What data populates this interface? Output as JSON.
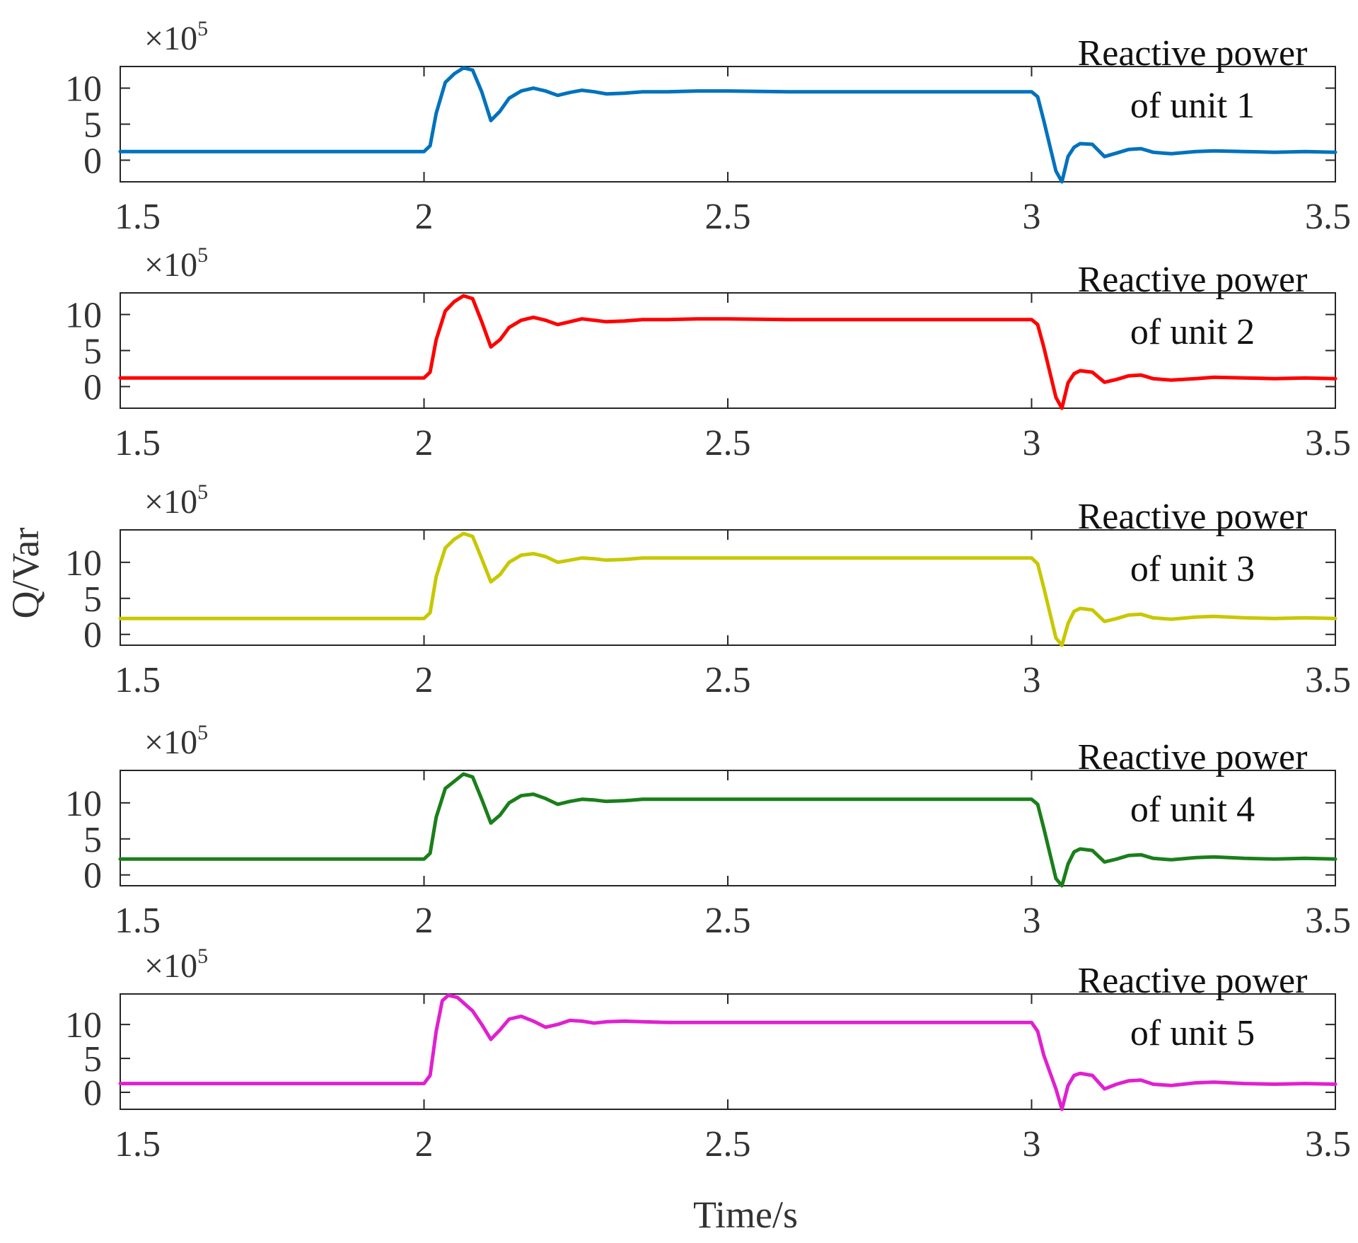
{
  "figure": {
    "ylabel": "Q/Var",
    "xlabel": "Time/s"
  },
  "chart_data": [
    {
      "type": "line",
      "title": "",
      "legend": "Reactive power of unit 1",
      "legend_lines": [
        "Reactive power",
        "of unit 1"
      ],
      "legend_position": "top-right",
      "color": "#0072BD",
      "xlim": [
        1.5,
        3.5
      ],
      "ylim": [
        -3,
        13
      ],
      "xticks": [
        1.5,
        2,
        2.5,
        3,
        3.5
      ],
      "xtick_labels": [
        "1.5",
        "2",
        "2.5",
        "3",
        "3.5"
      ],
      "yticks": [
        0,
        5,
        10
      ],
      "ytick_labels": [
        "0",
        "5",
        "10"
      ],
      "exponent_base": "×10",
      "exponent_power": "5",
      "x": [
        1.5,
        2.0,
        2.01,
        2.02,
        2.035,
        2.05,
        2.065,
        2.08,
        2.095,
        2.11,
        2.125,
        2.14,
        2.16,
        2.18,
        2.2,
        2.22,
        2.24,
        2.26,
        2.28,
        2.3,
        2.33,
        2.36,
        2.4,
        2.45,
        2.5,
        2.6,
        2.7,
        2.8,
        2.9,
        3.0,
        3.01,
        3.02,
        3.03,
        3.04,
        3.05,
        3.06,
        3.07,
        3.08,
        3.1,
        3.12,
        3.14,
        3.16,
        3.18,
        3.2,
        3.23,
        3.27,
        3.3,
        3.35,
        3.4,
        3.45,
        3.5
      ],
      "y": [
        1.2,
        1.2,
        2.0,
        6.5,
        10.8,
        12.0,
        12.8,
        12.5,
        9.5,
        5.5,
        6.8,
        8.6,
        9.6,
        10.0,
        9.6,
        9.0,
        9.4,
        9.7,
        9.5,
        9.2,
        9.3,
        9.5,
        9.5,
        9.6,
        9.6,
        9.5,
        9.5,
        9.5,
        9.5,
        9.5,
        8.8,
        5.5,
        2.0,
        -1.5,
        -3.0,
        0.5,
        1.8,
        2.3,
        2.2,
        0.5,
        1.0,
        1.5,
        1.6,
        1.1,
        0.9,
        1.2,
        1.3,
        1.2,
        1.1,
        1.2,
        1.1
      ]
    },
    {
      "type": "line",
      "title": "",
      "legend": "Reactive power of unit 2",
      "legend_lines": [
        "Reactive power",
        "of unit 2"
      ],
      "legend_position": "top-right",
      "color": "#FF0000",
      "xlim": [
        1.5,
        3.5
      ],
      "ylim": [
        -3,
        13
      ],
      "xticks": [
        1.5,
        2,
        2.5,
        3,
        3.5
      ],
      "xtick_labels": [
        "1.5",
        "2",
        "2.5",
        "3",
        "3.5"
      ],
      "yticks": [
        0,
        5,
        10
      ],
      "ytick_labels": [
        "0",
        "5",
        "10"
      ],
      "exponent_base": "×10",
      "exponent_power": "5",
      "x": [
        1.5,
        2.0,
        2.01,
        2.02,
        2.035,
        2.05,
        2.065,
        2.08,
        2.095,
        2.11,
        2.125,
        2.14,
        2.16,
        2.18,
        2.2,
        2.22,
        2.24,
        2.26,
        2.28,
        2.3,
        2.33,
        2.36,
        2.4,
        2.45,
        2.5,
        2.6,
        2.7,
        2.8,
        2.9,
        3.0,
        3.01,
        3.02,
        3.03,
        3.04,
        3.05,
        3.06,
        3.07,
        3.08,
        3.1,
        3.12,
        3.14,
        3.16,
        3.18,
        3.2,
        3.23,
        3.27,
        3.3,
        3.35,
        3.4,
        3.45,
        3.5
      ],
      "y": [
        1.2,
        1.2,
        2.0,
        6.5,
        10.5,
        11.8,
        12.6,
        12.2,
        9.0,
        5.5,
        6.5,
        8.2,
        9.2,
        9.6,
        9.2,
        8.6,
        9.0,
        9.4,
        9.2,
        9.0,
        9.1,
        9.3,
        9.3,
        9.4,
        9.4,
        9.3,
        9.3,
        9.3,
        9.3,
        9.3,
        8.6,
        5.5,
        2.0,
        -1.5,
        -3.0,
        0.5,
        1.8,
        2.2,
        2.0,
        0.6,
        1.0,
        1.5,
        1.6,
        1.1,
        0.9,
        1.1,
        1.3,
        1.2,
        1.1,
        1.2,
        1.1
      ]
    },
    {
      "type": "line",
      "title": "",
      "legend": "Reactive power of unit 3",
      "legend_lines": [
        "Reactive power",
        "of unit 3"
      ],
      "legend_position": "top-right",
      "color": "#C8C800",
      "xlim": [
        1.5,
        3.5
      ],
      "ylim": [
        -1.5,
        14.5
      ],
      "xticks": [
        1.5,
        2,
        2.5,
        3,
        3.5
      ],
      "xtick_labels": [
        "1.5",
        "2",
        "2.5",
        "3",
        "3.5"
      ],
      "yticks": [
        0,
        5,
        10
      ],
      "ytick_labels": [
        "0",
        "5",
        "10"
      ],
      "exponent_base": "×10",
      "exponent_power": "5",
      "x": [
        1.5,
        2.0,
        2.01,
        2.02,
        2.035,
        2.05,
        2.065,
        2.08,
        2.095,
        2.11,
        2.125,
        2.14,
        2.16,
        2.18,
        2.2,
        2.22,
        2.24,
        2.26,
        2.28,
        2.3,
        2.33,
        2.36,
        2.4,
        2.45,
        2.5,
        2.6,
        2.7,
        2.8,
        2.9,
        3.0,
        3.01,
        3.02,
        3.03,
        3.04,
        3.05,
        3.06,
        3.07,
        3.08,
        3.1,
        3.12,
        3.14,
        3.16,
        3.18,
        3.2,
        3.23,
        3.27,
        3.3,
        3.35,
        3.4,
        3.45,
        3.5
      ],
      "y": [
        2.2,
        2.2,
        3.0,
        8.0,
        12.0,
        13.2,
        14.0,
        13.6,
        10.5,
        7.3,
        8.3,
        10.0,
        11.0,
        11.2,
        10.8,
        10.0,
        10.3,
        10.6,
        10.5,
        10.3,
        10.4,
        10.6,
        10.6,
        10.6,
        10.6,
        10.6,
        10.6,
        10.6,
        10.6,
        10.6,
        9.8,
        6.5,
        3.0,
        -0.5,
        -1.5,
        1.5,
        3.2,
        3.6,
        3.4,
        1.8,
        2.2,
        2.7,
        2.8,
        2.3,
        2.1,
        2.4,
        2.5,
        2.3,
        2.2,
        2.3,
        2.2
      ]
    },
    {
      "type": "line",
      "title": "",
      "legend": "Reactive power of unit 4",
      "legend_lines": [
        "Reactive power",
        "of unit 4"
      ],
      "legend_position": "top-right",
      "color": "#1A7F1A",
      "xlim": [
        1.5,
        3.5
      ],
      "ylim": [
        -1.5,
        14.5
      ],
      "xticks": [
        1.5,
        2,
        2.5,
        3,
        3.5
      ],
      "xtick_labels": [
        "1.5",
        "2",
        "2.5",
        "3",
        "3.5"
      ],
      "yticks": [
        0,
        5,
        10
      ],
      "ytick_labels": [
        "0",
        "5",
        "10"
      ],
      "exponent_base": "×10",
      "exponent_power": "5",
      "x": [
        1.5,
        2.0,
        2.01,
        2.02,
        2.035,
        2.05,
        2.065,
        2.08,
        2.095,
        2.11,
        2.125,
        2.14,
        2.16,
        2.18,
        2.2,
        2.22,
        2.24,
        2.26,
        2.28,
        2.3,
        2.33,
        2.36,
        2.4,
        2.45,
        2.5,
        2.6,
        2.7,
        2.8,
        2.9,
        3.0,
        3.01,
        3.02,
        3.03,
        3.04,
        3.05,
        3.06,
        3.07,
        3.08,
        3.1,
        3.12,
        3.14,
        3.16,
        3.18,
        3.2,
        3.23,
        3.27,
        3.3,
        3.35,
        3.4,
        3.45,
        3.5
      ],
      "y": [
        2.2,
        2.2,
        3.0,
        8.0,
        12.0,
        13.0,
        14.0,
        13.6,
        10.5,
        7.2,
        8.3,
        10.0,
        11.0,
        11.2,
        10.6,
        9.8,
        10.2,
        10.5,
        10.4,
        10.2,
        10.3,
        10.5,
        10.5,
        10.5,
        10.5,
        10.5,
        10.5,
        10.5,
        10.5,
        10.5,
        9.8,
        6.5,
        3.0,
        -0.5,
        -1.5,
        1.5,
        3.2,
        3.6,
        3.4,
        1.8,
        2.2,
        2.7,
        2.8,
        2.3,
        2.1,
        2.4,
        2.5,
        2.3,
        2.2,
        2.3,
        2.2
      ]
    },
    {
      "type": "line",
      "title": "",
      "legend": "Reactive power of unit 5",
      "legend_lines": [
        "Reactive power",
        "of unit 5"
      ],
      "legend_position": "top-right",
      "color": "#E020D0",
      "xlim": [
        1.5,
        3.5
      ],
      "ylim": [
        -2.5,
        14.5
      ],
      "xticks": [
        1.5,
        2,
        2.5,
        3,
        3.5
      ],
      "xtick_labels": [
        "1.5",
        "2",
        "2.5",
        "3",
        "3.5"
      ],
      "yticks": [
        0,
        5,
        10
      ],
      "ytick_labels": [
        "0",
        "5",
        "10"
      ],
      "exponent_base": "×10",
      "exponent_power": "5",
      "x": [
        1.5,
        2.0,
        2.01,
        2.02,
        2.03,
        2.04,
        2.055,
        2.065,
        2.08,
        2.095,
        2.11,
        2.125,
        2.14,
        2.16,
        2.18,
        2.2,
        2.22,
        2.24,
        2.26,
        2.28,
        2.3,
        2.33,
        2.36,
        2.4,
        2.45,
        2.5,
        2.6,
        2.7,
        2.8,
        2.9,
        3.0,
        3.01,
        3.02,
        3.03,
        3.04,
        3.05,
        3.06,
        3.07,
        3.08,
        3.1,
        3.12,
        3.14,
        3.16,
        3.18,
        3.2,
        3.23,
        3.27,
        3.3,
        3.35,
        3.4,
        3.45,
        3.5
      ],
      "y": [
        1.3,
        1.3,
        2.5,
        9.0,
        13.5,
        14.3,
        14.0,
        13.2,
        12.0,
        10.0,
        7.8,
        9.2,
        10.8,
        11.2,
        10.5,
        9.6,
        10.0,
        10.6,
        10.5,
        10.2,
        10.4,
        10.5,
        10.4,
        10.3,
        10.3,
        10.3,
        10.3,
        10.3,
        10.3,
        10.3,
        10.3,
        9.0,
        5.5,
        3.0,
        0.5,
        -2.5,
        1.0,
        2.5,
        2.8,
        2.5,
        0.5,
        1.2,
        1.7,
        1.8,
        1.2,
        1.0,
        1.4,
        1.5,
        1.3,
        1.2,
        1.3,
        1.2
      ]
    }
  ]
}
